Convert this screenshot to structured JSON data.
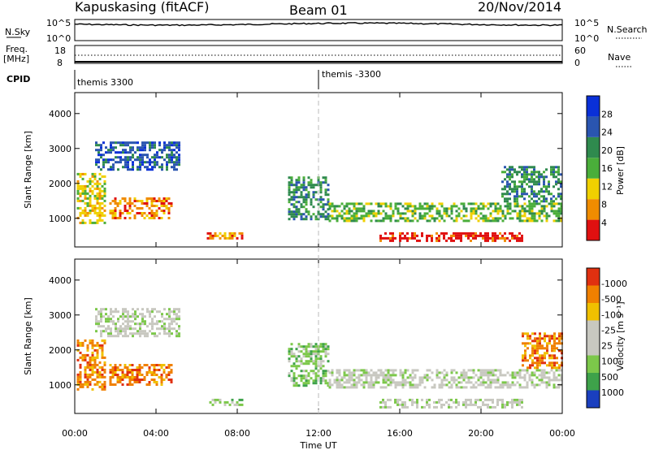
{
  "header": {
    "site": "Kapuskasing (fitACF)",
    "beam": "Beam 01",
    "date": "20/Nov/2014"
  },
  "top_panels": {
    "nsky_label": "N.Sky",
    "nsky_ticks": [
      "10^5",
      "10^0"
    ],
    "nsearch_label": "N.Search",
    "nsearch_ticks": [
      "10^5",
      "10^0"
    ],
    "freq_label": "Freq.",
    "freq_unit": "[MHz]",
    "freq_ticks": [
      "18",
      "8"
    ],
    "nave_label": "Nave",
    "nave_ticks": [
      "60",
      "0"
    ],
    "cpid_label": "CPID",
    "cpid_segments": [
      {
        "label": "themis 3300",
        "start_hour": 0
      },
      {
        "label": "themis -3300",
        "start_hour": 12
      }
    ]
  },
  "chart_data": [
    {
      "type": "heatmap",
      "name": "power",
      "ylabel": "Slant Range [km]",
      "ylim": [
        180,
        4600
      ],
      "yticks": [
        1000,
        2000,
        3000,
        4000
      ],
      "xlim": [
        0,
        24
      ],
      "colorbar_label": "Power [dB]",
      "colorbar_ticks": [
        "4",
        "8",
        "12",
        "16",
        "20",
        "24",
        "28"
      ],
      "colorbar_colors": [
        "#0a30d8",
        "#2a55b0",
        "#2f8a4e",
        "#4aae3a",
        "#f0d000",
        "#f08c00",
        "#e01010"
      ],
      "regions": [
        {
          "t0": 0.1,
          "t1": 1.5,
          "r0": 900,
          "r1": 2300,
          "level": 4
        },
        {
          "t0": 1.7,
          "t1": 4.8,
          "r0": 1000,
          "r1": 1600,
          "level": 5
        },
        {
          "t0": 1.0,
          "t1": 5.2,
          "r0": 2400,
          "r1": 3200,
          "level": 1
        },
        {
          "t0": 6.5,
          "t1": 8.3,
          "r0": 400,
          "r1": 600,
          "level": 5
        },
        {
          "t0": 10.5,
          "t1": 12.5,
          "r0": 1000,
          "r1": 2200,
          "level": 2
        },
        {
          "t0": 12.5,
          "t1": 24,
          "r0": 900,
          "r1": 1450,
          "level": 3
        },
        {
          "t0": 15,
          "t1": 22,
          "r0": 350,
          "r1": 600,
          "level": 6
        },
        {
          "t0": 21,
          "t1": 24,
          "r0": 1500,
          "r1": 2500,
          "level": 2
        }
      ]
    },
    {
      "type": "heatmap",
      "name": "velocity",
      "ylabel": "Slant Range [km]",
      "ylim": [
        180,
        4600
      ],
      "yticks": [
        1000,
        2000,
        3000,
        4000
      ],
      "xlim": [
        0,
        24
      ],
      "xticks": [
        "00:00",
        "04:00",
        "08:00",
        "12:00",
        "16:00",
        "20:00",
        "00:00"
      ],
      "xlabel": "Time UT",
      "colorbar_label": "Velocity [m s⁻¹]",
      "colorbar_ticks": [
        "1000",
        "500",
        "100",
        "25",
        "-25",
        "-100",
        "-500",
        "-1000"
      ],
      "colorbar_colors": [
        "#1a3fbf",
        "#3ea24a",
        "#7cc84a",
        "#c8c8c0",
        "#c8c8c0",
        "#f0c000",
        "#f08000",
        "#e03010"
      ],
      "regions": [
        {
          "t0": 0.1,
          "t1": 1.5,
          "r0": 900,
          "r1": 2300,
          "level": 6
        },
        {
          "t0": 1.7,
          "t1": 4.8,
          "r0": 1000,
          "r1": 1600,
          "level": 6
        },
        {
          "t0": 1.0,
          "t1": 5.2,
          "r0": 2400,
          "r1": 3200,
          "level": 3
        },
        {
          "t0": 6.5,
          "t1": 8.3,
          "r0": 400,
          "r1": 600,
          "level": 2
        },
        {
          "t0": 10.5,
          "t1": 12.5,
          "r0": 1000,
          "r1": 2200,
          "level": 2
        },
        {
          "t0": 12.5,
          "t1": 24,
          "r0": 900,
          "r1": 1450,
          "level": 3
        },
        {
          "t0": 15,
          "t1": 22,
          "r0": 350,
          "r1": 600,
          "level": 3
        },
        {
          "t0": 22,
          "t1": 24,
          "r0": 1500,
          "r1": 2500,
          "level": 6
        }
      ]
    }
  ]
}
